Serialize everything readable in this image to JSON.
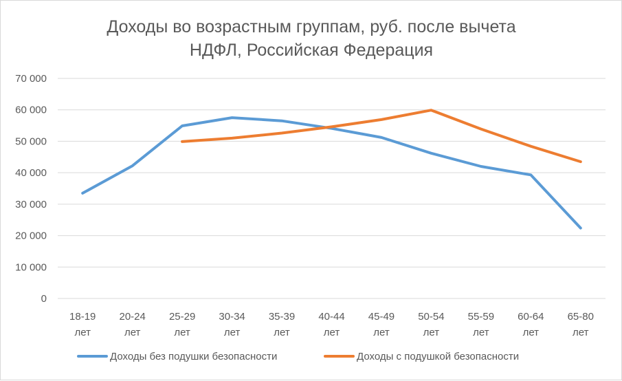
{
  "chart_data": {
    "type": "line",
    "title": [
      "Доходы во возрастным группам, руб. после вычета",
      "НДФЛ, Российская Федерация"
    ],
    "xlabel": "",
    "ylabel": "",
    "ylim": [
      0,
      70000
    ],
    "yticks": [
      0,
      10000,
      20000,
      30000,
      40000,
      50000,
      60000,
      70000
    ],
    "ytick_labels": [
      "0",
      "10 000",
      "20 000",
      "30 000",
      "40 000",
      "50 000",
      "60 000",
      "70 000"
    ],
    "categories": [
      [
        "18-19",
        "лет"
      ],
      [
        "20-24",
        "лет"
      ],
      [
        "25-29",
        "лет"
      ],
      [
        "30-34",
        "лет"
      ],
      [
        "35-39",
        "лет"
      ],
      [
        "40-44",
        "лет"
      ],
      [
        "45-49",
        "лет"
      ],
      [
        "50-54",
        "лет"
      ],
      [
        "55-59",
        "лет"
      ],
      [
        "60-64",
        "лет"
      ],
      [
        "65-80",
        "лет"
      ]
    ],
    "grid": true,
    "legend_position": "bottom",
    "series": [
      {
        "name": "Доходы без подушки безопасности",
        "color": "#5b9bd5",
        "values": [
          33500,
          42200,
          54900,
          57500,
          56500,
          54100,
          51200,
          46200,
          42000,
          39300,
          22400
        ]
      },
      {
        "name": "Доходы с подушкой безопасности",
        "color": "#ed7d31",
        "values": [
          null,
          null,
          49900,
          51000,
          52600,
          54600,
          56900,
          59900,
          53900,
          48400,
          43500
        ]
      }
    ]
  }
}
